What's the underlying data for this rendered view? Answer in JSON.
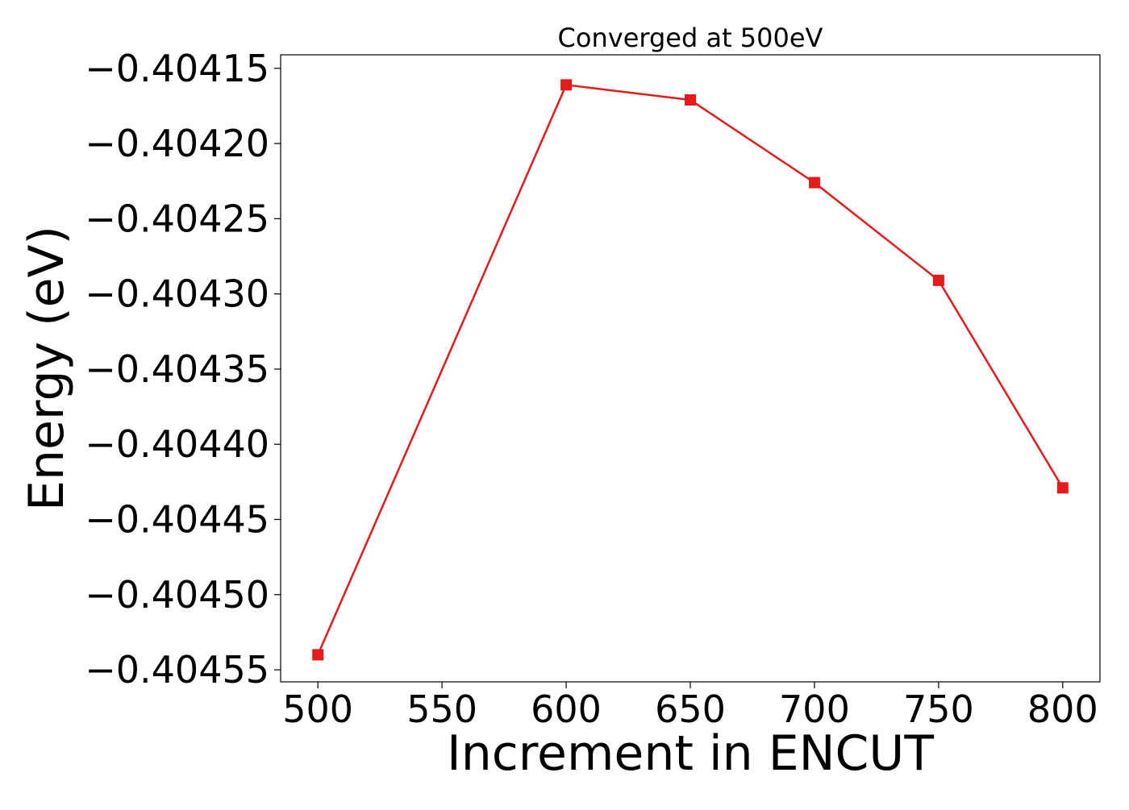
{
  "chart_data": {
    "type": "line",
    "title": "Converged at 500eV",
    "xlabel": "Increment in ENCUT",
    "ylabel": "Energy (eV)",
    "x": [
      500,
      600,
      650,
      700,
      750,
      800
    ],
    "xticks": [
      500,
      550,
      600,
      650,
      700,
      750,
      800
    ],
    "xtick_labels": [
      "500",
      "550",
      "600",
      "650",
      "700",
      "750",
      "800"
    ],
    "yticks": [
      -0.40455,
      -0.4045,
      -0.40445,
      -0.4044,
      -0.40435,
      -0.4043,
      -0.40425,
      -0.4042,
      -0.40415
    ],
    "ytick_labels": [
      "−0.40455",
      "−0.40450",
      "−0.40445",
      "−0.40440",
      "−0.40435",
      "−0.40430",
      "−0.40425",
      "−0.40420",
      "−0.40415"
    ],
    "xlim": [
      485,
      815
    ],
    "ylim": [
      -0.404558,
      -0.404141
    ],
    "grid": false,
    "series": [
      {
        "color": "#e41a1c",
        "marker": "square",
        "values": [
          -0.40454,
          -0.404161,
          -0.404171,
          -0.404226,
          -0.404291,
          -0.404429
        ]
      }
    ]
  }
}
